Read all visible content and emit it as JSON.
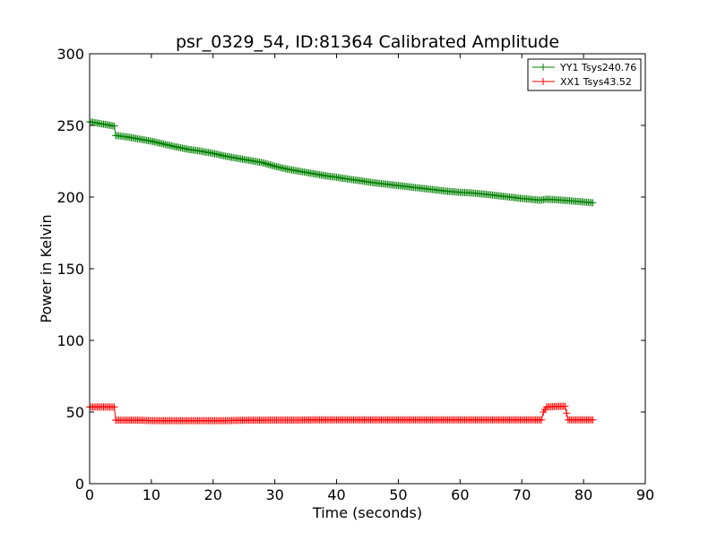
{
  "chart_data": {
    "type": "line",
    "title": "psr_0329_54, ID:81364 Calibrated Amplitude",
    "xlabel": "Time (seconds)",
    "ylabel": "Power in Kelvin",
    "xlim": [
      0,
      90
    ],
    "ylim": [
      0,
      300
    ],
    "xticks": [
      "0",
      "10",
      "20",
      "30",
      "40",
      "50",
      "60",
      "70",
      "80",
      "90"
    ],
    "yticks": [
      "0",
      "50",
      "100",
      "150",
      "200",
      "250",
      "300"
    ],
    "grid": false,
    "legend_position": "top-right",
    "marker": "+",
    "series": [
      {
        "name": "YY1 Tsys240.76",
        "color": "#008000",
        "points": [
          [
            0,
            252.5
          ],
          [
            1,
            251.8
          ],
          [
            2,
            251.0
          ],
          [
            3,
            250.3
          ],
          [
            4,
            249.5
          ],
          [
            4.2,
            243.0
          ],
          [
            6,
            242.0
          ],
          [
            8,
            240.5
          ],
          [
            10,
            239.0
          ],
          [
            12,
            237.0
          ],
          [
            14,
            235.0
          ],
          [
            16,
            233.3
          ],
          [
            18,
            232.0
          ],
          [
            20,
            230.5
          ],
          [
            22,
            228.5
          ],
          [
            24,
            227.0
          ],
          [
            26,
            225.5
          ],
          [
            28,
            224.0
          ],
          [
            30,
            221.5
          ],
          [
            32,
            219.5
          ],
          [
            34,
            218.0
          ],
          [
            36,
            216.5
          ],
          [
            38,
            215.0
          ],
          [
            40,
            213.8
          ],
          [
            42,
            212.5
          ],
          [
            44,
            211.3
          ],
          [
            46,
            210.0
          ],
          [
            48,
            209.0
          ],
          [
            50,
            208.0
          ],
          [
            52,
            207.0
          ],
          [
            54,
            206.0
          ],
          [
            56,
            205.0
          ],
          [
            58,
            204.0
          ],
          [
            60,
            203.3
          ],
          [
            62,
            202.8
          ],
          [
            64,
            202.0
          ],
          [
            66,
            201.0
          ],
          [
            68,
            200.0
          ],
          [
            70,
            199.0
          ],
          [
            72,
            198.2
          ],
          [
            73,
            197.8
          ],
          [
            74,
            198.5
          ],
          [
            76,
            198.0
          ],
          [
            78,
            197.3
          ],
          [
            80,
            196.6
          ],
          [
            81.5,
            196.0
          ]
        ]
      },
      {
        "name": "XX1 Tsys43.52",
        "color": "#ff0000",
        "points": [
          [
            0,
            53.5
          ],
          [
            1,
            53.5
          ],
          [
            2,
            53.5
          ],
          [
            3,
            53.5
          ],
          [
            4,
            53.5
          ],
          [
            4.2,
            44.3
          ],
          [
            6,
            44.3
          ],
          [
            8,
            44.3
          ],
          [
            10,
            44.0
          ],
          [
            12,
            44.0
          ],
          [
            14,
            44.0
          ],
          [
            16,
            44.0
          ],
          [
            18,
            44.0
          ],
          [
            20,
            44.0
          ],
          [
            22,
            44.0
          ],
          [
            24,
            44.2
          ],
          [
            26,
            44.3
          ],
          [
            28,
            44.3
          ],
          [
            30,
            44.4
          ],
          [
            32,
            44.4
          ],
          [
            34,
            44.4
          ],
          [
            36,
            44.5
          ],
          [
            38,
            44.5
          ],
          [
            40,
            44.5
          ],
          [
            42,
            44.5
          ],
          [
            44,
            44.5
          ],
          [
            46,
            44.5
          ],
          [
            48,
            44.5
          ],
          [
            50,
            44.5
          ],
          [
            52,
            44.5
          ],
          [
            54,
            44.5
          ],
          [
            56,
            44.5
          ],
          [
            58,
            44.5
          ],
          [
            60,
            44.5
          ],
          [
            62,
            44.5
          ],
          [
            64,
            44.5
          ],
          [
            66,
            44.5
          ],
          [
            68,
            44.5
          ],
          [
            70,
            44.5
          ],
          [
            72,
            44.5
          ],
          [
            73.2,
            44.5
          ],
          [
            73.5,
            50.0
          ],
          [
            74,
            53.5
          ],
          [
            76,
            54.0
          ],
          [
            77,
            54.0
          ],
          [
            77.5,
            44.5
          ],
          [
            79,
            44.5
          ],
          [
            81.5,
            44.5
          ]
        ]
      }
    ]
  }
}
